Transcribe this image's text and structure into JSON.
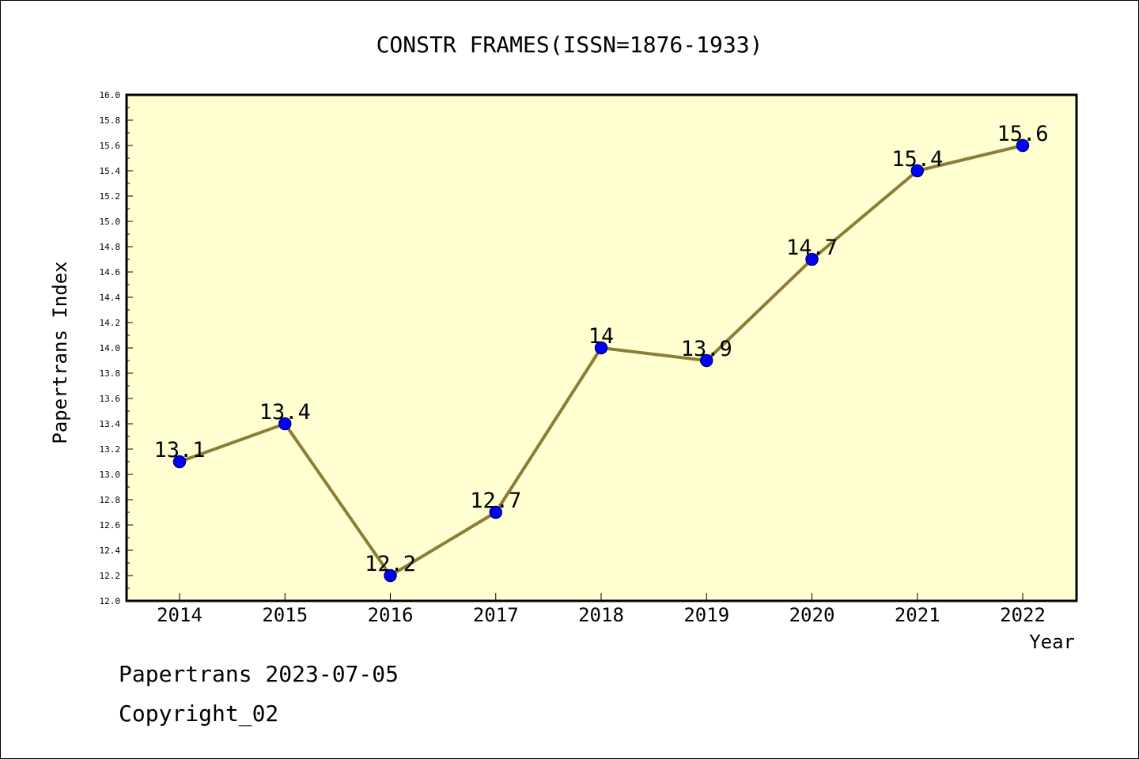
{
  "chart_data": {
    "type": "line",
    "title": "CONSTR FRAMES(ISSN=1876-1933)",
    "xlabel": "Year",
    "ylabel": "Papertrans Index",
    "categories": [
      "2014",
      "2015",
      "2016",
      "2017",
      "2018",
      "2019",
      "2020",
      "2021",
      "2022"
    ],
    "values": [
      13.1,
      13.4,
      12.2,
      12.7,
      14.0,
      13.9,
      14.7,
      15.4,
      15.6
    ],
    "data_labels": [
      "13.1",
      "13.4",
      "12.2",
      "12.7",
      "14",
      "13.9",
      "14.7",
      "15.4",
      "15.6"
    ],
    "ylim": [
      12.0,
      16.0
    ],
    "yticks": [
      "12.0",
      "12.2",
      "12.4",
      "12.6",
      "12.8",
      "13.0",
      "13.2",
      "13.4",
      "13.6",
      "13.8",
      "14.0",
      "14.2",
      "14.4",
      "14.6",
      "14.8",
      "15.0",
      "15.2",
      "15.4",
      "15.6",
      "15.8",
      "16.0"
    ],
    "grid": false,
    "legend": "none",
    "colors": {
      "plot_background": "#ffffd2",
      "line": "#8b7d35",
      "marker_fill": "#0000ff",
      "marker_edge": "#000080"
    }
  },
  "footer": {
    "date_line": "Papertrans 2023-07-05",
    "copyright": "Copyright_02"
  }
}
